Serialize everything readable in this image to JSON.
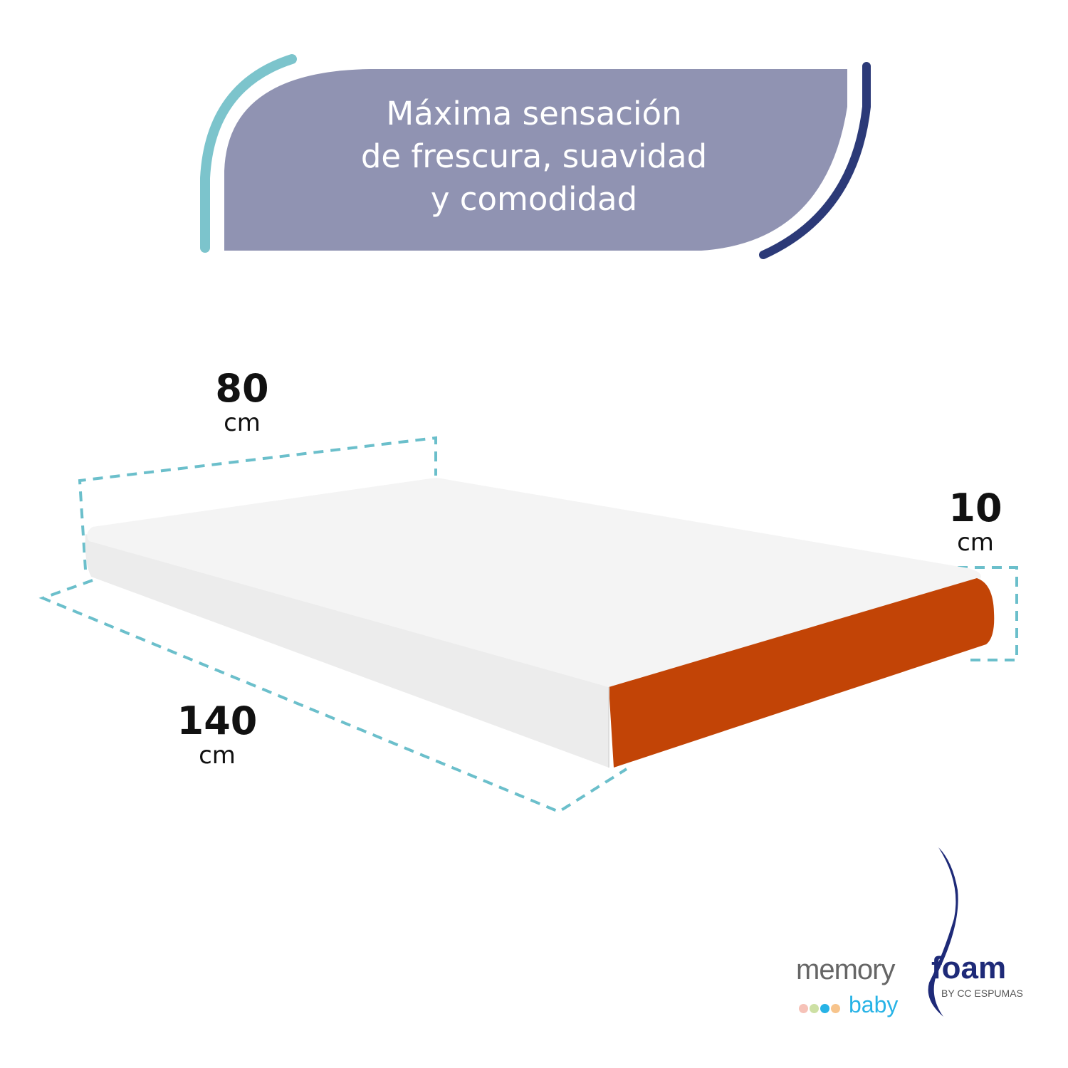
{
  "banner": {
    "headline_lines": [
      "Máxima sensación",
      "de frescura, suavidad",
      "y comodidad"
    ],
    "fill_color": "#9093b2",
    "left_arc_color": "#7cc4cc",
    "right_arc_color": "#2c3a78"
  },
  "dimensions": {
    "width": {
      "value": "80",
      "unit": "cm"
    },
    "length": {
      "value": "140",
      "unit": "cm"
    },
    "height": {
      "value": "10",
      "unit": "cm"
    },
    "dash_color": "#6bbfcb"
  },
  "product": {
    "cover_color": "#f2f2f2",
    "side_color": "#c24406"
  },
  "logo": {
    "word1": "memory",
    "word2": "foam",
    "byline": "BY CC ESPUMAS",
    "sub": "baby",
    "dot_colors": [
      "#f6c2b8",
      "#cde0a4",
      "#27b3e6",
      "#f7c48c"
    ]
  }
}
